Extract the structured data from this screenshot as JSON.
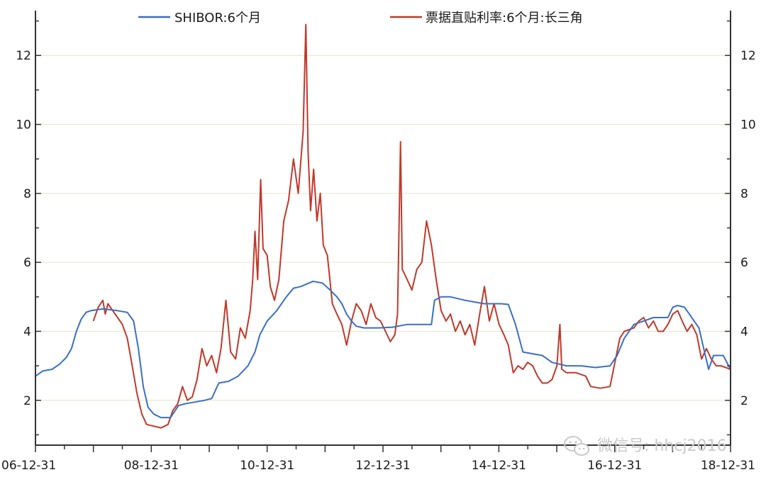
{
  "chart_data": {
    "type": "line",
    "title": "",
    "xlabel": "",
    "ylabel": "",
    "x_tick_labels": [
      "06-12-31",
      "08-12-31",
      "10-12-31",
      "12-12-31",
      "14-12-31",
      "16-12-31",
      "18-12-31"
    ],
    "y_tick_labels": [
      "2",
      "4",
      "6",
      "8",
      "10",
      "12"
    ],
    "y_ticks": [
      2,
      4,
      6,
      8,
      10,
      12
    ],
    "ylim": [
      0.7,
      13.3
    ],
    "xlim": [
      "2006-12-31",
      "2018-12-31"
    ],
    "grid": true,
    "legend_position": "top",
    "series": [
      {
        "name": "SHIBOR:6个月",
        "color": "#3a6fc4",
        "points": [
          [
            "2006-12-31",
            2.7
          ],
          [
            "2007-02-15",
            2.85
          ],
          [
            "2007-04-15",
            2.9
          ],
          [
            "2007-06-01",
            3.05
          ],
          [
            "2007-07-15",
            3.25
          ],
          [
            "2007-08-15",
            3.5
          ],
          [
            "2007-09-15",
            4.0
          ],
          [
            "2007-10-15",
            4.35
          ],
          [
            "2007-11-15",
            4.55
          ],
          [
            "2007-12-15",
            4.6
          ],
          [
            "2008-03-01",
            4.65
          ],
          [
            "2008-06-01",
            4.6
          ],
          [
            "2008-08-01",
            4.55
          ],
          [
            "2008-09-10",
            4.3
          ],
          [
            "2008-10-10",
            3.5
          ],
          [
            "2008-11-10",
            2.4
          ],
          [
            "2008-12-10",
            1.8
          ],
          [
            "2009-01-15",
            1.6
          ],
          [
            "2009-03-01",
            1.5
          ],
          [
            "2009-05-01",
            1.5
          ],
          [
            "2009-06-20",
            1.85
          ],
          [
            "2009-08-01",
            1.9
          ],
          [
            "2009-10-01",
            1.95
          ],
          [
            "2009-12-01",
            2.0
          ],
          [
            "2010-01-15",
            2.05
          ],
          [
            "2010-03-01",
            2.5
          ],
          [
            "2010-05-01",
            2.55
          ],
          [
            "2010-07-01",
            2.7
          ],
          [
            "2010-09-01",
            3.0
          ],
          [
            "2010-10-15",
            3.4
          ],
          [
            "2010-11-15",
            3.9
          ],
          [
            "2010-12-31",
            4.3
          ],
          [
            "2011-03-01",
            4.6
          ],
          [
            "2011-05-01",
            5.0
          ],
          [
            "2011-06-15",
            5.25
          ],
          [
            "2011-08-01",
            5.3
          ],
          [
            "2011-10-15",
            5.45
          ],
          [
            "2011-12-15",
            5.4
          ],
          [
            "2012-02-01",
            5.2
          ],
          [
            "2012-03-15",
            5.0
          ],
          [
            "2012-04-15",
            4.8
          ],
          [
            "2012-05-15",
            4.5
          ],
          [
            "2012-06-15",
            4.3
          ],
          [
            "2012-07-15",
            4.15
          ],
          [
            "2012-09-01",
            4.1
          ],
          [
            "2012-12-01",
            4.1
          ],
          [
            "2013-03-01",
            4.12
          ],
          [
            "2013-06-01",
            4.2
          ],
          [
            "2013-09-01",
            4.2
          ],
          [
            "2013-11-01",
            4.2
          ],
          [
            "2013-11-20",
            4.9
          ],
          [
            "2014-01-01",
            5.0
          ],
          [
            "2014-03-01",
            5.0
          ],
          [
            "2014-06-01",
            4.9
          ],
          [
            "2014-08-01",
            4.85
          ],
          [
            "2014-10-01",
            4.8
          ],
          [
            "2014-12-01",
            4.8
          ],
          [
            "2015-01-15",
            4.8
          ],
          [
            "2015-03-01",
            4.78
          ],
          [
            "2015-04-15",
            4.2
          ],
          [
            "2015-06-01",
            3.4
          ],
          [
            "2015-08-01",
            3.35
          ],
          [
            "2015-10-01",
            3.3
          ],
          [
            "2015-12-01",
            3.1
          ],
          [
            "2016-03-01",
            3.0
          ],
          [
            "2016-06-01",
            3.0
          ],
          [
            "2016-09-01",
            2.95
          ],
          [
            "2016-12-01",
            3.0
          ],
          [
            "2017-01-15",
            3.3
          ],
          [
            "2017-03-01",
            3.8
          ],
          [
            "2017-05-01",
            4.2
          ],
          [
            "2017-07-01",
            4.3
          ],
          [
            "2017-09-01",
            4.4
          ],
          [
            "2017-12-01",
            4.4
          ],
          [
            "2018-01-01",
            4.7
          ],
          [
            "2018-02-01",
            4.75
          ],
          [
            "2018-03-15",
            4.7
          ],
          [
            "2018-04-15",
            4.5
          ],
          [
            "2018-05-15",
            4.3
          ],
          [
            "2018-06-15",
            4.1
          ],
          [
            "2018-07-15",
            3.5
          ],
          [
            "2018-08-15",
            2.9
          ],
          [
            "2018-09-15",
            3.3
          ],
          [
            "2018-11-15",
            3.3
          ],
          [
            "2018-12-31",
            2.9
          ]
        ]
      },
      {
        "name": "票据直贴利率:6个月:长三角",
        "color": "#c0392b",
        "points": [
          [
            "2007-12-31",
            4.3
          ],
          [
            "2008-01-31",
            4.7
          ],
          [
            "2008-02-29",
            4.9
          ],
          [
            "2008-03-15",
            4.5
          ],
          [
            "2008-04-01",
            4.8
          ],
          [
            "2008-05-01",
            4.6
          ],
          [
            "2008-06-01",
            4.4
          ],
          [
            "2008-07-01",
            4.2
          ],
          [
            "2008-08-01",
            3.8
          ],
          [
            "2008-09-01",
            3.0
          ],
          [
            "2008-10-01",
            2.2
          ],
          [
            "2008-11-01",
            1.6
          ],
          [
            "2008-12-01",
            1.3
          ],
          [
            "2009-01-15",
            1.25
          ],
          [
            "2009-03-01",
            1.2
          ],
          [
            "2009-04-15",
            1.3
          ],
          [
            "2009-05-15",
            1.7
          ],
          [
            "2009-06-15",
            1.9
          ],
          [
            "2009-07-15",
            2.4
          ],
          [
            "2009-08-15",
            2.0
          ],
          [
            "2009-09-15",
            2.1
          ],
          [
            "2009-10-15",
            2.6
          ],
          [
            "2009-11-15",
            3.5
          ],
          [
            "2009-12-15",
            3.0
          ],
          [
            "2010-01-15",
            3.3
          ],
          [
            "2010-02-15",
            2.8
          ],
          [
            "2010-03-15",
            3.5
          ],
          [
            "2010-04-15",
            4.9
          ],
          [
            "2010-05-15",
            3.4
          ],
          [
            "2010-06-15",
            3.2
          ],
          [
            "2010-07-15",
            4.1
          ],
          [
            "2010-08-15",
            3.8
          ],
          [
            "2010-09-15",
            4.6
          ],
          [
            "2010-10-01",
            5.5
          ],
          [
            "2010-10-15",
            6.9
          ],
          [
            "2010-11-01",
            5.5
          ],
          [
            "2010-11-20",
            8.4
          ],
          [
            "2010-12-05",
            6.4
          ],
          [
            "2010-12-31",
            6.2
          ],
          [
            "2011-01-20",
            5.3
          ],
          [
            "2011-02-15",
            4.9
          ],
          [
            "2011-03-15",
            5.5
          ],
          [
            "2011-04-15",
            7.2
          ],
          [
            "2011-05-15",
            7.8
          ],
          [
            "2011-06-15",
            9.0
          ],
          [
            "2011-07-15",
            8.0
          ],
          [
            "2011-08-15",
            9.8
          ],
          [
            "2011-09-01",
            12.9
          ],
          [
            "2011-09-15",
            9.2
          ],
          [
            "2011-10-01",
            7.5
          ],
          [
            "2011-10-20",
            8.7
          ],
          [
            "2011-11-10",
            7.2
          ],
          [
            "2011-12-01",
            8.0
          ],
          [
            "2011-12-20",
            6.5
          ],
          [
            "2012-01-15",
            6.2
          ],
          [
            "2012-02-15",
            4.8
          ],
          [
            "2012-03-15",
            4.5
          ],
          [
            "2012-04-15",
            4.2
          ],
          [
            "2012-05-15",
            3.6
          ],
          [
            "2012-06-15",
            4.3
          ],
          [
            "2012-07-15",
            4.8
          ],
          [
            "2012-08-15",
            4.6
          ],
          [
            "2012-09-15",
            4.2
          ],
          [
            "2012-10-15",
            4.8
          ],
          [
            "2012-11-15",
            4.4
          ],
          [
            "2012-12-15",
            4.3
          ],
          [
            "2013-01-15",
            4.0
          ],
          [
            "2013-02-15",
            3.7
          ],
          [
            "2013-03-15",
            3.9
          ],
          [
            "2013-04-01",
            4.5
          ],
          [
            "2013-04-20",
            9.5
          ],
          [
            "2013-05-01",
            5.8
          ],
          [
            "2013-06-01",
            5.5
          ],
          [
            "2013-07-01",
            5.2
          ],
          [
            "2013-08-01",
            5.8
          ],
          [
            "2013-09-01",
            6.0
          ],
          [
            "2013-10-01",
            7.2
          ],
          [
            "2013-11-01",
            6.5
          ],
          [
            "2013-12-01",
            5.5
          ],
          [
            "2014-01-01",
            4.6
          ],
          [
            "2014-02-01",
            4.3
          ],
          [
            "2014-03-01",
            4.5
          ],
          [
            "2014-04-01",
            4.0
          ],
          [
            "2014-05-01",
            4.3
          ],
          [
            "2014-06-01",
            3.9
          ],
          [
            "2014-07-01",
            4.2
          ],
          [
            "2014-08-01",
            3.6
          ],
          [
            "2014-09-01",
            4.5
          ],
          [
            "2014-10-01",
            5.3
          ],
          [
            "2014-11-01",
            4.3
          ],
          [
            "2014-12-01",
            4.8
          ],
          [
            "2015-01-01",
            4.2
          ],
          [
            "2015-02-01",
            3.9
          ],
          [
            "2015-03-01",
            3.6
          ],
          [
            "2015-04-01",
            2.8
          ],
          [
            "2015-05-01",
            3.0
          ],
          [
            "2015-06-01",
            2.9
          ],
          [
            "2015-07-01",
            3.1
          ],
          [
            "2015-08-01",
            3.0
          ],
          [
            "2015-09-01",
            2.7
          ],
          [
            "2015-10-01",
            2.5
          ],
          [
            "2015-11-01",
            2.5
          ],
          [
            "2015-12-01",
            2.6
          ],
          [
            "2016-01-01",
            3.0
          ],
          [
            "2016-01-20",
            4.2
          ],
          [
            "2016-02-01",
            2.9
          ],
          [
            "2016-03-01",
            2.8
          ],
          [
            "2016-05-01",
            2.8
          ],
          [
            "2016-07-01",
            2.7
          ],
          [
            "2016-08-01",
            2.4
          ],
          [
            "2016-10-01",
            2.35
          ],
          [
            "2016-12-01",
            2.4
          ],
          [
            "2017-01-01",
            3.1
          ],
          [
            "2017-02-01",
            3.8
          ],
          [
            "2017-03-01",
            4.0
          ],
          [
            "2017-05-01",
            4.1
          ],
          [
            "2017-06-01",
            4.3
          ],
          [
            "2017-07-01",
            4.4
          ],
          [
            "2017-08-01",
            4.1
          ],
          [
            "2017-09-01",
            4.3
          ],
          [
            "2017-10-01",
            4.0
          ],
          [
            "2017-11-01",
            4.0
          ],
          [
            "2017-12-01",
            4.2
          ],
          [
            "2018-01-01",
            4.5
          ],
          [
            "2018-02-01",
            4.6
          ],
          [
            "2018-03-01",
            4.3
          ],
          [
            "2018-04-01",
            4.0
          ],
          [
            "2018-05-01",
            4.2
          ],
          [
            "2018-06-01",
            3.9
          ],
          [
            "2018-07-01",
            3.2
          ],
          [
            "2018-08-01",
            3.5
          ],
          [
            "2018-09-01",
            3.2
          ],
          [
            "2018-10-01",
            3.0
          ],
          [
            "2018-11-01",
            3.0
          ],
          [
            "2018-12-31",
            2.9
          ]
        ]
      }
    ]
  },
  "watermark": {
    "text": "微信号: hhcj2016"
  }
}
